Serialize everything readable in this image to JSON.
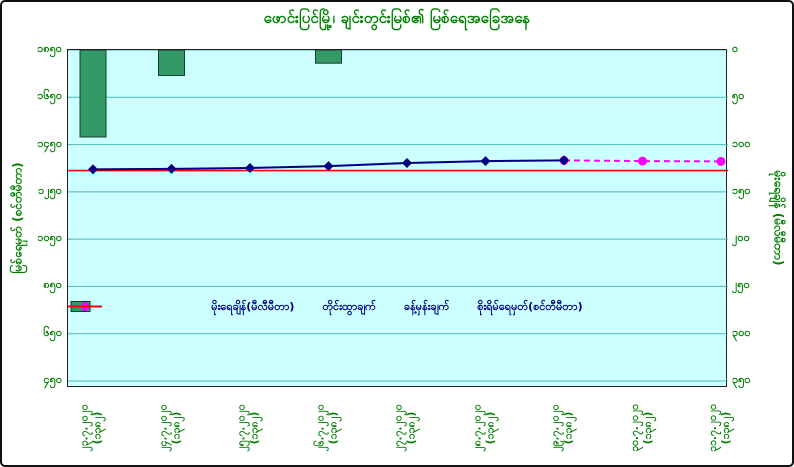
{
  "title": "ဖောင်းပြင်မြို့၊ ချင်းတွင်းမြစ်၏ မြစ်ရေအခြေအနေ",
  "colors": {
    "title_green": "#008000",
    "tick_green": "#007d00",
    "bar_green": "#339966",
    "line_navy": "#000080",
    "forecast_magenta": "#FF00FF",
    "danger_red": "#FF0000",
    "plot_bg": "#CCFFFF",
    "grid": "#4db8b8"
  },
  "left_axis": {
    "title": "မြစ်ရေမှတ် (စင်တီမီတာ)",
    "ticks": [
      "၁၈၅၀",
      "၁၆၅၀",
      "၁၄၅၀",
      "၁၂၅၀",
      "၁၀၅၀",
      "၈၅၀",
      "၆၅၀",
      "၄၅၀"
    ],
    "tick_values": [
      1850,
      1650,
      1450,
      1250,
      1050,
      850,
      650,
      450
    ],
    "min": 450,
    "max": 1850
  },
  "right_axis": {
    "title": "မိုးရေချိန် (မီလီမီတာ)",
    "ticks": [
      "၀",
      "၅၀",
      "၁၀၀",
      "၁၅၀",
      "၂၀၀",
      "၂၅၀",
      "၃၀၀",
      "၃၅၀"
    ],
    "tick_values": [
      0,
      50,
      100,
      150,
      200,
      250,
      300,
      350
    ],
    "min": 0,
    "max": 350
  },
  "legend": {
    "items": [
      {
        "label": "မိုးရေချိန်(မီလီမီတာ)",
        "swatch": "green-bar"
      },
      {
        "label": "တိုင်းထွာချက်",
        "swatch": "navy-line-diamond"
      },
      {
        "label": "ခန့်မှန်းချက်",
        "swatch": "magenta-dashed-circle"
      },
      {
        "label": "စိုးရိမ်ရေမှတ်(စင်တီမီတာ)",
        "swatch": "red-line"
      }
    ]
  },
  "chart_data": {
    "type": "combo",
    "subtype": "bar+line",
    "title": "ဖောင်းပြင်မြို့၊ ချင်းတွင်းမြစ်၏ မြစ်ရေအခြေအနေ",
    "categories": [
      "၂၃.၇.၂၀၂၀",
      "၂၄.၇.၂၀၂၀",
      "၂၅.၇.၂၀၂၀",
      "၂၆.၇.၂၀၂၀",
      "၂၇.၇.၂၀၂၀",
      "၂၈.၇.၂၀၂၀",
      "၂၉.၇.၂၀၂၀",
      "၃၀.၇.၂၀၂၀",
      "၃၁.၇.၂၀၂၀"
    ],
    "era_year_label": "(၁၃၈၂)",
    "left_axis_range": [
      450,
      1850
    ],
    "right_axis_range": [
      0,
      350
    ],
    "right_axis_inverted": true,
    "grid": "horizontal",
    "legend_position": "inside-bottom-center",
    "series": [
      {
        "name": "မိုးရေချိန်(မီလီမီတာ)",
        "type": "bar",
        "axis": "right",
        "unit": "mm",
        "values": [
          92,
          27,
          0,
          14,
          0,
          0,
          0,
          0,
          0
        ]
      },
      {
        "name": "တိုင်းထွာချက်",
        "type": "line",
        "axis": "left",
        "unit": "cm",
        "values": [
          1345,
          1347,
          1351,
          1359,
          1372,
          1380,
          1383,
          null,
          null
        ]
      },
      {
        "name": "ခန့်မှန်းချက်",
        "type": "line-dashed",
        "axis": "left",
        "unit": "cm",
        "values": [
          null,
          null,
          null,
          null,
          null,
          null,
          1383,
          1380,
          1379
        ]
      },
      {
        "name": "စိုးရိမ်ရေမှတ်(စင်တီမီတာ)",
        "type": "hline",
        "axis": "left",
        "unit": "cm",
        "value": 1340
      }
    ]
  }
}
